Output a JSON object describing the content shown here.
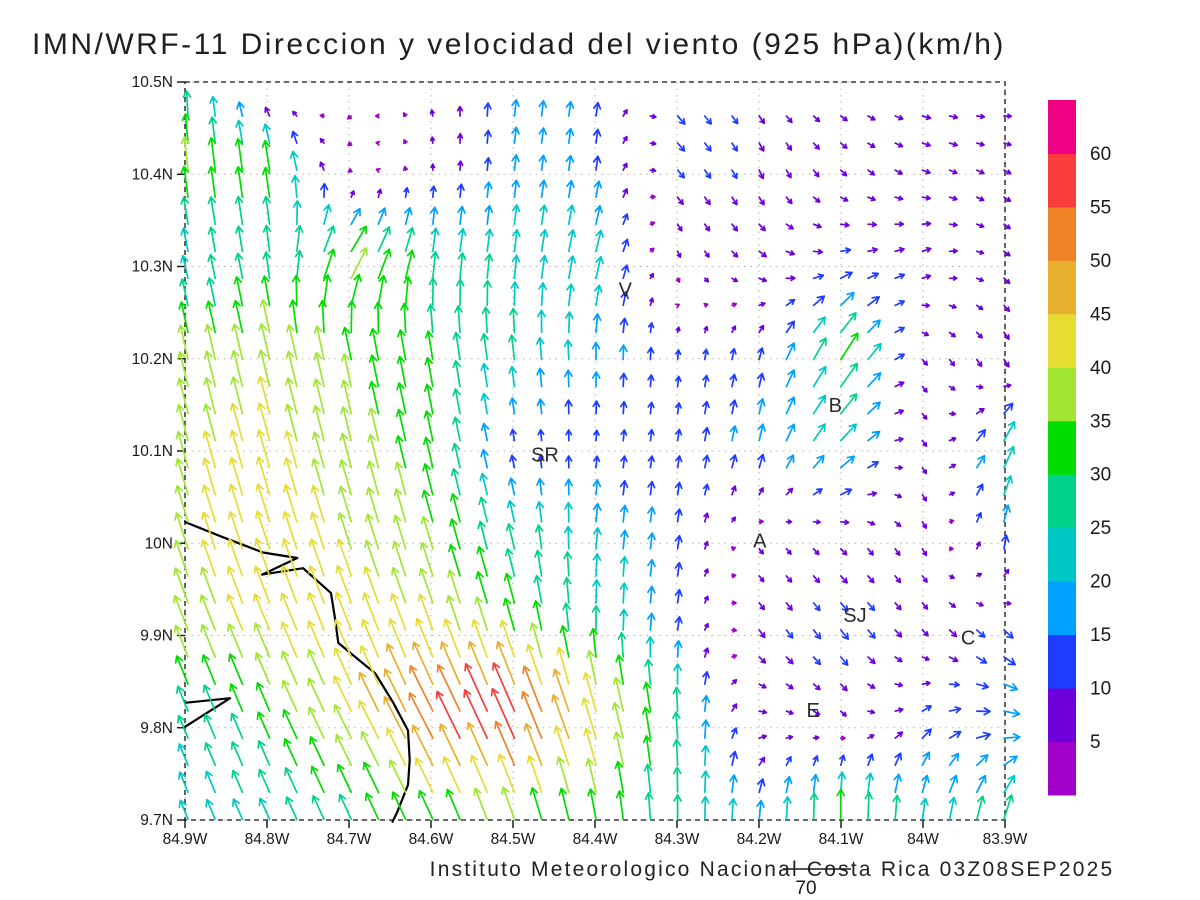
{
  "title": "IMN/WRF-11 Direccion y velocidad del viento (925 hPa)(km/h)",
  "footer": "Instituto Meteorologico Nacional Costa Rica 03Z08SEP2025",
  "axes": {
    "lon_min": -84.9,
    "lon_max": -83.9,
    "lat_min": 9.7,
    "lat_max": 10.5,
    "x_ticks": [
      {
        "label": "84.9W",
        "lon": -84.9
      },
      {
        "label": "84.8W",
        "lon": -84.8
      },
      {
        "label": "84.7W",
        "lon": -84.7
      },
      {
        "label": "84.6W",
        "lon": -84.6
      },
      {
        "label": "84.5W",
        "lon": -84.5
      },
      {
        "label": "84.4W",
        "lon": -84.4
      },
      {
        "label": "84.3W",
        "lon": -84.3
      },
      {
        "label": "84.2W",
        "lon": -84.2
      },
      {
        "label": "84.1W",
        "lon": -84.1
      },
      {
        "label": "84W",
        "lon": -84.0
      },
      {
        "label": "83.9W",
        "lon": -83.9
      }
    ],
    "y_ticks": [
      {
        "label": "10.5N",
        "lat": 10.5
      },
      {
        "label": "10.4N",
        "lat": 10.4
      },
      {
        "label": "10.3N",
        "lat": 10.3
      },
      {
        "label": "10.2N",
        "lat": 10.2
      },
      {
        "label": "10.1N",
        "lat": 10.1
      },
      {
        "label": "10N",
        "lat": 10.0
      },
      {
        "label": "9.9N",
        "lat": 9.9
      },
      {
        "label": "9.8N",
        "lat": 9.8
      },
      {
        "label": "9.7N",
        "lat": 9.7
      }
    ]
  },
  "colorbar": {
    "bucket_size_kmh": 5,
    "colors_low_to_high": [
      "#a000c8",
      "#6e00dc",
      "#1e3cff",
      "#00a0ff",
      "#00c8c8",
      "#00d28c",
      "#00dc00",
      "#a0e632",
      "#e6dc32",
      "#e6af2d",
      "#f08228",
      "#fa3c3c",
      "#f00082"
    ],
    "tick_labels": [
      "5",
      "10",
      "15",
      "20",
      "25",
      "30",
      "35",
      "40",
      "45",
      "50",
      "55",
      "60"
    ]
  },
  "reference_vector": {
    "value": "70",
    "speed_kmh": 70
  },
  "cities": [
    {
      "label": "V",
      "lon": -84.363,
      "lat": 10.275
    },
    {
      "label": "SR",
      "lon": -84.461,
      "lat": 10.096
    },
    {
      "label": "B",
      "lon": -84.107,
      "lat": 10.15
    },
    {
      "label": "A",
      "lon": -84.199,
      "lat": 10.003
    },
    {
      "label": "SJ",
      "lon": -84.083,
      "lat": 9.922
    },
    {
      "label": "C",
      "lon": -83.945,
      "lat": 9.898
    },
    {
      "label": "E",
      "lon": -84.134,
      "lat": 9.819
    }
  ],
  "coastlines": [
    [
      [
        -84.9,
        10.023
      ],
      [
        -84.855,
        10.007
      ],
      [
        -84.805,
        9.99
      ],
      [
        -84.763,
        9.984
      ],
      [
        -84.806,
        9.966
      ],
      [
        -84.756,
        9.973
      ],
      [
        -84.722,
        9.946
      ],
      [
        -84.717,
        9.918
      ],
      [
        -84.713,
        9.892
      ],
      [
        -84.69,
        9.875
      ],
      [
        -84.668,
        9.859
      ],
      [
        -84.646,
        9.827
      ],
      [
        -84.628,
        9.797
      ],
      [
        -84.626,
        9.765
      ],
      [
        -84.628,
        9.738
      ],
      [
        -84.641,
        9.709
      ],
      [
        -84.647,
        9.698
      ]
    ],
    [
      [
        -84.9,
        9.827
      ],
      [
        -84.845,
        9.832
      ],
      [
        -84.9,
        9.801
      ]
    ]
  ],
  "chart_data": {
    "type": "vector_field",
    "title": "IMN/WRF-11 Direccion y velocidad del viento (925 hPa)(km/h)",
    "units": "km/h",
    "level": "925 hPa",
    "valid_time": "03Z08SEP2025",
    "xlabel": "",
    "ylabel": "",
    "xlim": [
      -84.9,
      -83.9
    ],
    "ylim": [
      9.7,
      10.5
    ],
    "grid_on": true,
    "legend_position": "right-colorbar",
    "grid_lons": [
      -84.9,
      -84.8,
      -84.7,
      -84.6,
      -84.5,
      -84.4,
      -84.3,
      -84.2,
      -84.1,
      -84.0,
      -83.9
    ],
    "grid_lats": [
      10.5,
      10.4,
      10.3,
      10.2,
      10.1,
      10.0,
      9.9,
      9.8,
      9.7
    ],
    "uv_kmh": [
      [
        [
          0,
          22
        ],
        [
          -4,
          -5
        ],
        [
          -4,
          -4
        ],
        [
          -2,
          6
        ],
        [
          2,
          18
        ],
        [
          2,
          14
        ],
        [
          8,
          -9
        ],
        [
          6,
          -7
        ],
        [
          7,
          -4
        ],
        [
          9,
          -2
        ],
        [
          8,
          2
        ]
      ],
      [
        [
          -4,
          36
        ],
        [
          -5,
          34
        ],
        [
          -3,
          -2
        ],
        [
          0,
          6
        ],
        [
          2,
          16
        ],
        [
          2,
          15
        ],
        [
          7,
          -8
        ],
        [
          4,
          -9
        ],
        [
          6,
          -6
        ],
        [
          8,
          -3
        ],
        [
          7,
          -4
        ]
      ],
      [
        [
          -5,
          22
        ],
        [
          -4,
          26
        ],
        [
          20,
          32
        ],
        [
          4,
          28
        ],
        [
          3,
          24
        ],
        [
          6,
          24
        ],
        [
          2,
          -6
        ],
        [
          8,
          -5
        ],
        [
          11,
          3
        ],
        [
          9,
          4
        ],
        [
          6,
          -5
        ]
      ],
      [
        [
          -8,
          36
        ],
        [
          -9,
          38
        ],
        [
          -7,
          34
        ],
        [
          -5,
          30
        ],
        [
          -3,
          26
        ],
        [
          0,
          18
        ],
        [
          1,
          10
        ],
        [
          3,
          12
        ],
        [
          18,
          28
        ],
        [
          5,
          -6
        ],
        [
          5,
          -8
        ]
      ],
      [
        [
          -10,
          38
        ],
        [
          -11,
          40
        ],
        [
          -9,
          36
        ],
        [
          -7,
          32
        ],
        [
          -2,
          10
        ],
        [
          1,
          10
        ],
        [
          2,
          12
        ],
        [
          4,
          18
        ],
        [
          16,
          16
        ],
        [
          4,
          -6
        ],
        [
          12,
          24
        ]
      ],
      [
        [
          -12,
          38
        ],
        [
          -13,
          40
        ],
        [
          -12,
          38
        ],
        [
          -10,
          34
        ],
        [
          -6,
          26
        ],
        [
          2,
          22
        ],
        [
          2,
          14
        ],
        [
          4,
          -5
        ],
        [
          6,
          -6
        ],
        [
          4,
          -7
        ],
        [
          2,
          16
        ]
      ],
      [
        [
          -14,
          36
        ],
        [
          -16,
          38
        ],
        [
          -16,
          40
        ],
        [
          -14,
          38
        ],
        [
          -10,
          34
        ],
        [
          0,
          26
        ],
        [
          2,
          14
        ],
        [
          6,
          -8
        ],
        [
          8,
          -10
        ],
        [
          6,
          -6
        ],
        [
          10,
          -10
        ]
      ],
      [
        [
          -10,
          24
        ],
        [
          -12,
          28
        ],
        [
          -18,
          36
        ],
        [
          -26,
          50
        ],
        [
          -25,
          55
        ],
        [
          -14,
          44
        ],
        [
          -2,
          28
        ],
        [
          8,
          0
        ],
        [
          5,
          -4
        ],
        [
          10,
          8
        ],
        [
          18,
          -2
        ]
      ],
      [
        [
          -8,
          20
        ],
        [
          -10,
          22
        ],
        [
          -12,
          26
        ],
        [
          -14,
          30
        ],
        [
          -12,
          34
        ],
        [
          -6,
          32
        ],
        [
          0,
          26
        ],
        [
          2,
          20
        ],
        [
          0,
          32
        ],
        [
          3,
          22
        ],
        [
          8,
          26
        ]
      ]
    ]
  }
}
